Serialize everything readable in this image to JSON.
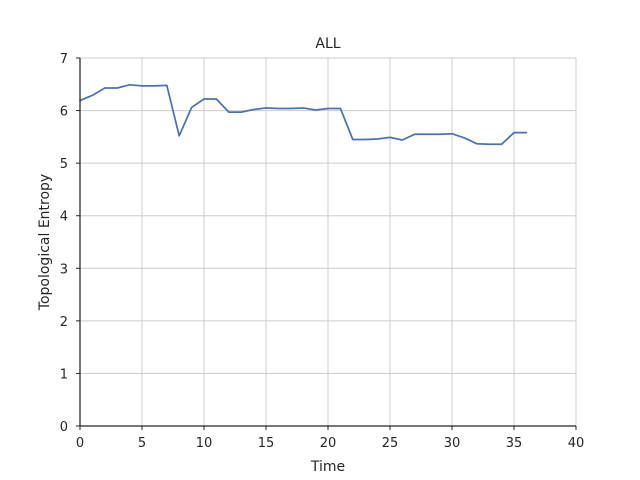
{
  "chart_data": {
    "type": "line",
    "title": "ALL",
    "xlabel": "Time",
    "ylabel": "Topological Entropy",
    "xlim": [
      0,
      40
    ],
    "ylim": [
      0,
      7
    ],
    "xticks": [
      0,
      5,
      10,
      15,
      20,
      25,
      30,
      35,
      40
    ],
    "yticks": [
      0,
      1,
      2,
      3,
      4,
      5,
      6,
      7
    ],
    "grid": true,
    "colors": {
      "line": "#4c72b0",
      "grid": "#cccccc",
      "axis": "#262626"
    },
    "series": [
      {
        "x": [
          0,
          1,
          2,
          3,
          4,
          5,
          6,
          7,
          8,
          9,
          10,
          11,
          12,
          13,
          14,
          15,
          16,
          17,
          18,
          19,
          20,
          21,
          22,
          23,
          24,
          25,
          26,
          27,
          28,
          29,
          30,
          31,
          32,
          33,
          34,
          35,
          36
        ],
        "values": [
          6.19,
          6.29,
          6.43,
          6.43,
          6.49,
          6.47,
          6.47,
          6.48,
          5.52,
          6.06,
          6.22,
          6.22,
          5.97,
          5.97,
          6.02,
          6.05,
          6.04,
          6.04,
          6.05,
          6.01,
          6.04,
          6.04,
          5.45,
          5.45,
          5.46,
          5.49,
          5.44,
          5.55,
          5.55,
          5.55,
          5.56,
          5.48,
          5.37,
          5.36,
          5.36,
          5.58,
          5.58
        ]
      }
    ]
  }
}
